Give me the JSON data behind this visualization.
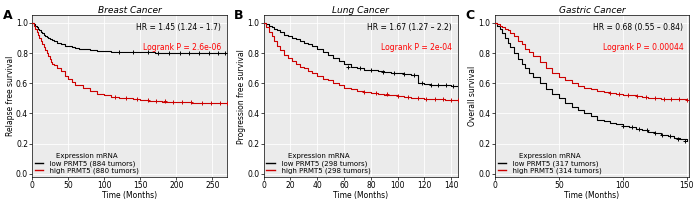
{
  "panels": [
    {
      "label": "A",
      "title": "Breast Cancer",
      "ylabel": "Relapse free survival",
      "xlabel": "Time (Months)",
      "xlim": [
        0,
        270
      ],
      "ylim": [
        -0.02,
        1.05
      ],
      "xticks": [
        0,
        50,
        100,
        150,
        200,
        250
      ],
      "yticks": [
        0.0,
        0.2,
        0.4,
        0.6,
        0.8,
        1.0
      ],
      "hr_text": "HR = 1.45 (1.24 – 1.7)",
      "p_text": "Logrank P = 2.6e-06",
      "legend_title": "Expression mRNA",
      "low_label": "  low PRMT5 (884 tumors)",
      "high_label": "  high PRMT5 (880 tumors)",
      "low_color": "#000000",
      "high_color": "#cc0000",
      "low_curve_x": [
        0,
        2,
        4,
        6,
        8,
        10,
        12,
        14,
        16,
        18,
        20,
        22,
        24,
        26,
        28,
        30,
        35,
        40,
        45,
        50,
        55,
        60,
        65,
        70,
        80,
        90,
        100,
        110,
        120,
        130,
        140,
        150,
        160,
        170,
        180,
        200,
        220,
        250,
        270
      ],
      "low_curve_y": [
        1.0,
        0.99,
        0.98,
        0.97,
        0.96,
        0.95,
        0.94,
        0.93,
        0.92,
        0.91,
        0.905,
        0.9,
        0.895,
        0.89,
        0.885,
        0.88,
        0.87,
        0.86,
        0.85,
        0.845,
        0.84,
        0.835,
        0.83,
        0.825,
        0.82,
        0.815,
        0.812,
        0.81,
        0.808,
        0.807,
        0.806,
        0.805,
        0.804,
        0.803,
        0.803,
        0.802,
        0.801,
        0.801,
        0.801
      ],
      "high_curve_x": [
        0,
        2,
        4,
        6,
        8,
        10,
        12,
        14,
        16,
        18,
        20,
        22,
        24,
        26,
        28,
        30,
        35,
        40,
        45,
        50,
        55,
        60,
        70,
        80,
        90,
        100,
        110,
        120,
        130,
        140,
        150,
        160,
        170,
        180,
        200,
        220,
        250,
        270
      ],
      "high_curve_y": [
        1.0,
        0.98,
        0.96,
        0.94,
        0.92,
        0.9,
        0.88,
        0.86,
        0.84,
        0.82,
        0.8,
        0.78,
        0.76,
        0.74,
        0.73,
        0.72,
        0.7,
        0.68,
        0.65,
        0.63,
        0.61,
        0.59,
        0.57,
        0.55,
        0.53,
        0.52,
        0.51,
        0.505,
        0.5,
        0.495,
        0.49,
        0.485,
        0.48,
        0.478,
        0.475,
        0.472,
        0.47,
        0.468
      ],
      "censor_low_x": [
        120,
        140,
        160,
        175,
        190,
        205,
        218,
        232,
        245,
        258,
        268
      ],
      "censor_low_y": [
        0.808,
        0.806,
        0.804,
        0.803,
        0.803,
        0.802,
        0.802,
        0.801,
        0.801,
        0.801,
        0.801
      ],
      "censor_high_x": [
        115,
        130,
        145,
        160,
        172,
        184,
        196,
        208,
        220,
        235,
        248,
        260,
        270
      ],
      "censor_high_y": [
        0.51,
        0.5,
        0.495,
        0.49,
        0.485,
        0.48,
        0.478,
        0.476,
        0.474,
        0.472,
        0.471,
        0.47,
        0.468
      ]
    },
    {
      "label": "B",
      "title": "Lung Cancer",
      "ylabel": "Progression free survival",
      "xlabel": "Time (Months)",
      "xlim": [
        0,
        145
      ],
      "ylim": [
        -0.02,
        1.05
      ],
      "xticks": [
        0,
        20,
        40,
        60,
        80,
        100,
        120,
        140
      ],
      "yticks": [
        0.0,
        0.2,
        0.4,
        0.6,
        0.8,
        1.0
      ],
      "hr_text": "HR = 1.67 (1.27 – 2.2)",
      "p_text": "Logrank P = 2e-04",
      "legend_title": "Expression mRNA",
      "low_label": "  low PRMT5 (298 tumors)",
      "high_label": "  high PRMT5 (298 tumors)",
      "low_color": "#000000",
      "high_color": "#cc0000",
      "low_curve_x": [
        0,
        2,
        4,
        6,
        8,
        10,
        12,
        15,
        18,
        21,
        24,
        27,
        30,
        33,
        36,
        40,
        44,
        48,
        52,
        56,
        60,
        65,
        70,
        75,
        80,
        85,
        90,
        95,
        100,
        105,
        110,
        115,
        120,
        125,
        130,
        135,
        140,
        145
      ],
      "low_curve_y": [
        1.0,
        0.99,
        0.98,
        0.97,
        0.96,
        0.95,
        0.94,
        0.92,
        0.91,
        0.9,
        0.89,
        0.88,
        0.87,
        0.86,
        0.85,
        0.83,
        0.81,
        0.79,
        0.77,
        0.75,
        0.73,
        0.71,
        0.7,
        0.69,
        0.685,
        0.68,
        0.675,
        0.67,
        0.665,
        0.66,
        0.655,
        0.6,
        0.595,
        0.59,
        0.588,
        0.586,
        0.585,
        0.585
      ],
      "high_curve_x": [
        0,
        2,
        4,
        6,
        8,
        10,
        12,
        15,
        18,
        21,
        24,
        27,
        30,
        33,
        36,
        40,
        44,
        48,
        52,
        56,
        60,
        65,
        70,
        75,
        80,
        85,
        90,
        95,
        100,
        105,
        110,
        115,
        120,
        125,
        130,
        135,
        140,
        145
      ],
      "high_curve_y": [
        1.0,
        0.97,
        0.94,
        0.91,
        0.88,
        0.85,
        0.82,
        0.79,
        0.77,
        0.75,
        0.73,
        0.71,
        0.7,
        0.68,
        0.67,
        0.65,
        0.63,
        0.62,
        0.6,
        0.59,
        0.57,
        0.56,
        0.55,
        0.54,
        0.535,
        0.53,
        0.525,
        0.52,
        0.515,
        0.51,
        0.505,
        0.5,
        0.498,
        0.496,
        0.494,
        0.492,
        0.49,
        0.49
      ],
      "censor_low_x": [
        63,
        72,
        80,
        89,
        97,
        105,
        112,
        118,
        125,
        130,
        136,
        141
      ],
      "censor_low_y": [
        0.71,
        0.7,
        0.685,
        0.678,
        0.671,
        0.66,
        0.655,
        0.6,
        0.59,
        0.588,
        0.586,
        0.585
      ],
      "censor_high_x": [
        75,
        84,
        92,
        100,
        108,
        115,
        121,
        128,
        134,
        140,
        145
      ],
      "censor_high_y": [
        0.54,
        0.535,
        0.528,
        0.515,
        0.508,
        0.5,
        0.498,
        0.496,
        0.494,
        0.49,
        0.49
      ]
    },
    {
      "label": "C",
      "title": "Gastric Cancer",
      "ylabel": "Overall survival",
      "xlabel": "Time (Months)",
      "xlim": [
        0,
        152
      ],
      "ylim": [
        -0.02,
        1.05
      ],
      "xticks": [
        0,
        50,
        100,
        150
      ],
      "yticks": [
        0.0,
        0.2,
        0.4,
        0.6,
        0.8,
        1.0
      ],
      "hr_text": "HR = 0.68 (0.55 – 0.84)",
      "p_text": "Logrank P = 0.00044",
      "legend_title": "Expression mRNA",
      "low_label": "  low PRMT5 (317 tumors)",
      "high_label": "  high PRMT5 (314 tumors)",
      "low_color": "#000000",
      "high_color": "#cc0000",
      "low_curve_x": [
        0,
        2,
        4,
        6,
        8,
        10,
        12,
        15,
        18,
        21,
        24,
        27,
        30,
        35,
        40,
        45,
        50,
        55,
        60,
        65,
        70,
        75,
        80,
        85,
        90,
        95,
        100,
        105,
        110,
        115,
        120,
        125,
        130,
        135,
        140,
        145,
        150
      ],
      "low_curve_y": [
        1.0,
        0.98,
        0.96,
        0.93,
        0.9,
        0.87,
        0.84,
        0.8,
        0.76,
        0.73,
        0.7,
        0.67,
        0.64,
        0.6,
        0.56,
        0.53,
        0.5,
        0.47,
        0.44,
        0.42,
        0.4,
        0.38,
        0.36,
        0.35,
        0.34,
        0.33,
        0.32,
        0.31,
        0.3,
        0.29,
        0.28,
        0.27,
        0.26,
        0.25,
        0.24,
        0.23,
        0.22
      ],
      "high_curve_x": [
        0,
        2,
        4,
        6,
        8,
        10,
        12,
        15,
        18,
        21,
        24,
        27,
        30,
        35,
        40,
        45,
        50,
        55,
        60,
        65,
        70,
        75,
        80,
        85,
        90,
        95,
        100,
        105,
        110,
        115,
        120,
        125,
        130,
        135,
        140,
        145,
        150
      ],
      "high_curve_y": [
        1.0,
        0.99,
        0.98,
        0.97,
        0.96,
        0.95,
        0.93,
        0.91,
        0.88,
        0.86,
        0.83,
        0.81,
        0.78,
        0.74,
        0.7,
        0.67,
        0.64,
        0.62,
        0.6,
        0.58,
        0.57,
        0.56,
        0.55,
        0.54,
        0.535,
        0.53,
        0.525,
        0.52,
        0.515,
        0.51,
        0.505,
        0.5,
        0.498,
        0.496,
        0.494,
        0.493,
        0.492
      ],
      "censor_low_x": [
        100,
        107,
        113,
        119,
        125,
        131,
        137,
        143,
        149
      ],
      "censor_low_y": [
        0.32,
        0.31,
        0.3,
        0.29,
        0.27,
        0.26,
        0.25,
        0.23,
        0.22
      ],
      "censor_high_x": [
        90,
        97,
        104,
        111,
        118,
        125,
        132,
        138,
        144,
        150
      ],
      "censor_high_y": [
        0.535,
        0.53,
        0.522,
        0.515,
        0.507,
        0.5,
        0.498,
        0.495,
        0.494,
        0.492
      ]
    }
  ],
  "bg_color": "#ffffff",
  "plot_bg_color": "#ebebeb",
  "grid_color": "#ffffff",
  "font_size": 5.5,
  "title_font_size": 6.5,
  "label_font_size": 5.5,
  "legend_font_size": 5.0,
  "annot_font_size": 5.5
}
